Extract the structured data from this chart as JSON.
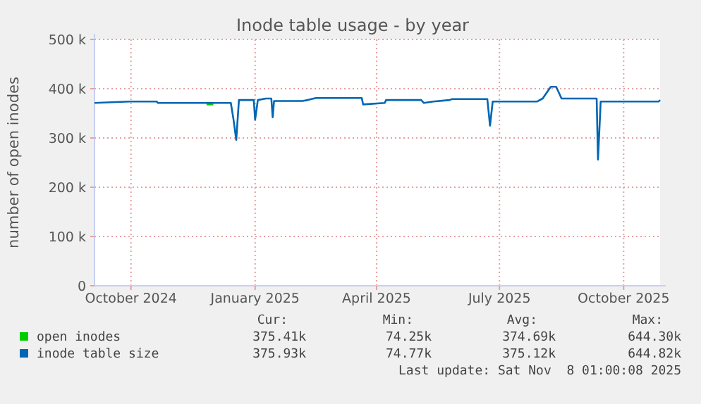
{
  "chart_data": {
    "type": "line",
    "title": "Inode table usage - by year",
    "ylabel": "number of open inodes",
    "x": [
      "2024-09-04",
      "2024-09-30",
      "2024-10-20",
      "2024-10-21",
      "2024-10-23",
      "2024-11-25",
      "2024-11-26",
      "2024-12-01",
      "2024-12-02",
      "2024-12-14",
      "2024-12-16",
      "2024-12-18",
      "2024-12-20",
      "2024-12-31",
      "2025-01-01",
      "2025-01-03",
      "2025-01-09",
      "2025-01-13",
      "2025-01-14",
      "2025-01-15",
      "2025-02-05",
      "2025-02-09",
      "2025-02-15",
      "2025-03-21",
      "2025-03-22",
      "2025-04-07",
      "2025-04-08",
      "2025-05-04",
      "2025-05-06",
      "2025-05-13",
      "2025-05-25",
      "2025-05-27",
      "2025-06-22",
      "2025-06-24",
      "2025-06-26",
      "2025-07-29",
      "2025-08-02",
      "2025-08-08",
      "2025-08-12",
      "2025-08-16",
      "2025-09-11",
      "2025-09-12",
      "2025-09-14",
      "2025-10-27",
      "2025-10-28"
    ],
    "series": [
      {
        "name": "open inodes",
        "color": "#00cc00",
        "values": [
          null,
          null,
          null,
          null,
          null,
          null,
          368000,
          368000,
          null,
          null,
          null,
          null,
          null,
          null,
          null,
          null,
          null,
          null,
          null,
          null,
          null,
          null,
          null,
          null,
          null,
          null,
          null,
          null,
          null,
          null,
          null,
          null,
          null,
          null,
          null,
          null,
          null,
          null,
          null,
          null,
          null,
          null,
          null,
          null,
          null
        ]
      },
      {
        "name": "inode table size",
        "color": "#0066b3",
        "values": [
          371000,
          374000,
          374000,
          371000,
          371000,
          371000,
          371000,
          371000,
          371000,
          371000,
          337000,
          296000,
          377000,
          377000,
          337000,
          377000,
          380000,
          380000,
          342000,
          375000,
          375000,
          377000,
          381000,
          381000,
          368000,
          371000,
          377000,
          377000,
          371000,
          374000,
          377000,
          379000,
          379000,
          325000,
          374000,
          374000,
          380000,
          404000,
          404000,
          380000,
          380000,
          256000,
          374000,
          374000,
          377000
        ]
      }
    ],
    "xlim": [
      "2024-09-04",
      "2025-10-28"
    ],
    "xticks": [
      {
        "value": "2024-10-01",
        "label": "October 2024"
      },
      {
        "value": "2025-01-01",
        "label": "January 2025"
      },
      {
        "value": "2025-04-01",
        "label": "April 2025"
      },
      {
        "value": "2025-07-01",
        "label": "July 2025"
      },
      {
        "value": "2025-10-01",
        "label": "October 2025"
      }
    ],
    "ylim": [
      0,
      500000
    ],
    "yticks": [
      0,
      {
        "value": 100000,
        "label": "100 k"
      },
      {
        "value": 200000,
        "label": "200 k"
      },
      {
        "value": 300000,
        "label": "300 k"
      },
      {
        "value": 400000,
        "label": "400 k"
      },
      {
        "value": 500000,
        "label": "500 k"
      }
    ],
    "grid": true,
    "legend": "bottom",
    "marker": "none",
    "line_style": "solid",
    "annotations": [
      "Cur:",
      "Min:",
      "Avg:",
      "Max:",
      "375.41k",
      "74.25k",
      "374.69k",
      "644.30k",
      "375.93k",
      "74.77k",
      "375.12k",
      "644.82k",
      "Last update: Sat Nov  8 01:00:08 2025"
    ]
  }
}
